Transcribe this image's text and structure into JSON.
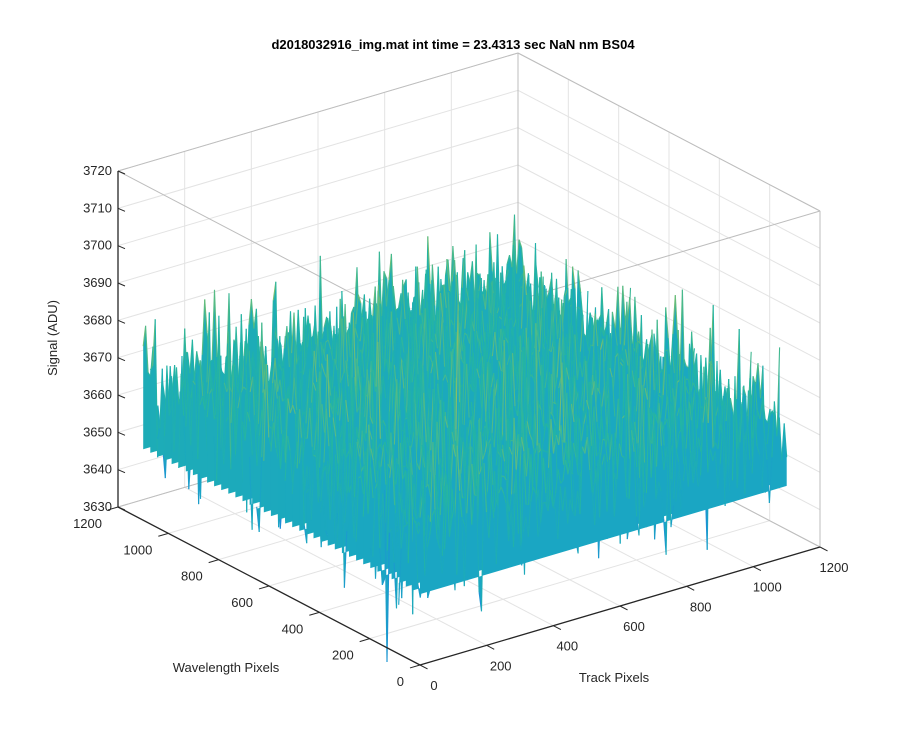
{
  "chart_data": {
    "type": "surface",
    "title": "d2018032916_img.mat int time = 23.4313 sec  NaN nm BS04",
    "xlabel": "Track Pixels",
    "ylabel": "Wavelength Pixels",
    "zlabel": "Signal (ADU)",
    "xlim": [
      0,
      1200
    ],
    "ylim": [
      0,
      1200
    ],
    "zlim": [
      3630,
      3720
    ],
    "x_ticks": [
      "0",
      "200",
      "400",
      "600",
      "800",
      "1000",
      "1200"
    ],
    "y_ticks": [
      "0",
      "200",
      "400",
      "600",
      "800",
      "1000",
      "1200"
    ],
    "z_ticks": [
      "3630",
      "3640",
      "3650",
      "3660",
      "3670",
      "3680",
      "3690",
      "3700",
      "3710",
      "3720"
    ],
    "data_extent": {
      "x": [
        0,
        1100
      ],
      "y": [
        0,
        1100
      ]
    },
    "signal_mean": 3663,
    "signal_noise_std": 9,
    "signal_range": [
      3625,
      3712
    ],
    "colormap": [
      "#0d4fd6",
      "#1e8fd8",
      "#1aa7c2",
      "#24b5a2",
      "#7cbf6e",
      "#c9bd45",
      "#f2c233"
    ],
    "grid": true,
    "box": true
  }
}
